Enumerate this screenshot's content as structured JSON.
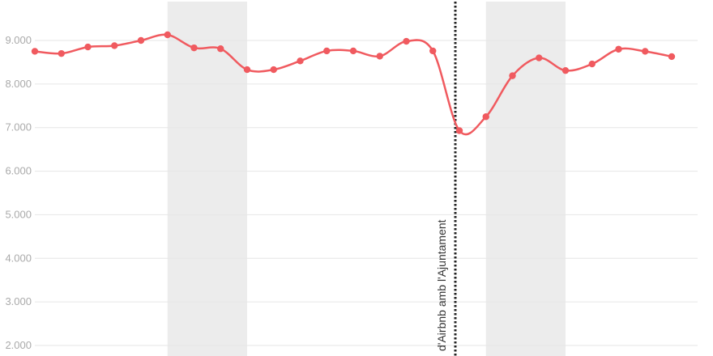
{
  "chart_data": {
    "type": "line",
    "title": "",
    "xlabel": "",
    "ylabel": "",
    "ylim": [
      1800,
      9900
    ],
    "yticks": [
      2000,
      3000,
      4000,
      5000,
      6000,
      7000,
      8000,
      9000
    ],
    "ytick_labels": [
      "2.000",
      "3.000",
      "4.000",
      "5.000",
      "6.000",
      "7.000",
      "8.000",
      "9.000"
    ],
    "grid": true,
    "series": [
      {
        "color": "#f05a5f",
        "values": [
          8750,
          8700,
          8850,
          8880,
          9000,
          9130,
          8830,
          8810,
          8330,
          8330,
          8530,
          8760,
          8760,
          8640,
          8980,
          8760,
          6930,
          7250,
          8190,
          8600,
          8310,
          8460,
          8800,
          8750,
          8630
        ]
      }
    ],
    "shaded_ranges": [
      [
        5,
        8
      ],
      [
        17,
        20
      ]
    ],
    "shade_color": "#ececec",
    "annotation": {
      "text": "d'Airbnb amb l'Ajuntament",
      "at_index": 16,
      "color": "#222222"
    }
  }
}
